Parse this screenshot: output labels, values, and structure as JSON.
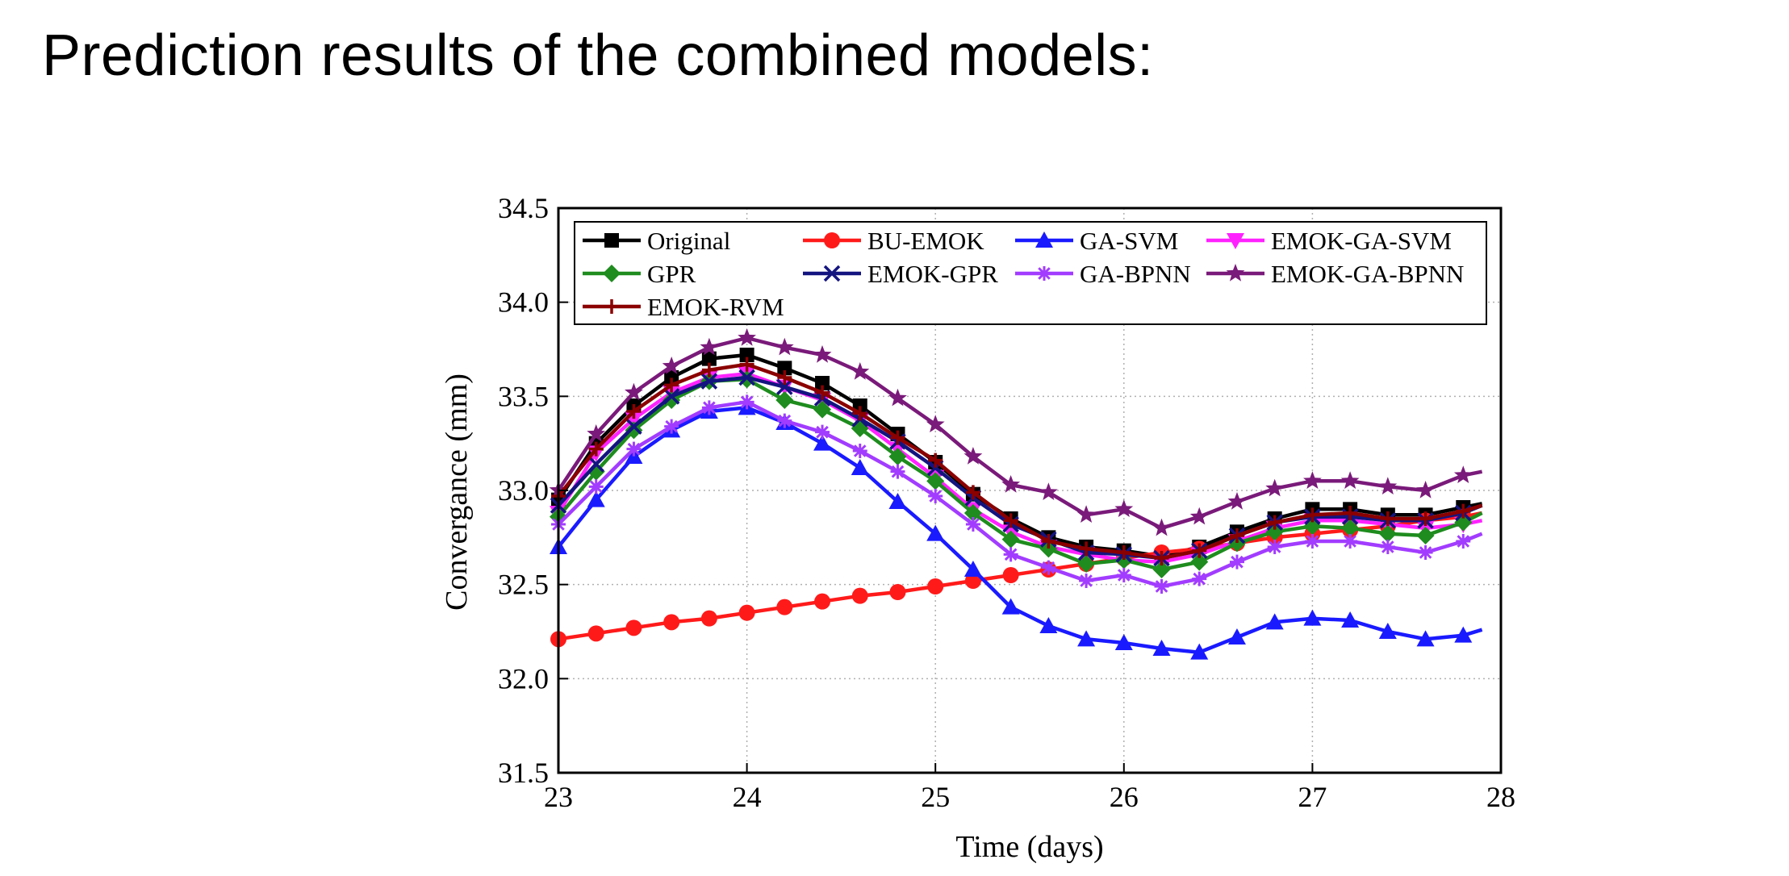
{
  "slide": {
    "title": "Prediction results of the combined models:"
  },
  "chart_data": {
    "type": "line",
    "title": "",
    "xlabel": "Time (days)",
    "ylabel": "Convergance (mm)",
    "xlim": [
      23,
      28
    ],
    "ylim": [
      31.5,
      34.5
    ],
    "xticks": [
      "23",
      "24",
      "25",
      "26",
      "27",
      "28"
    ],
    "yticks": [
      "31.5",
      "32.0",
      "32.5",
      "33.0",
      "33.5",
      "34.0",
      "34.5"
    ],
    "grid": true,
    "legend_position": "top",
    "x": [
      23.0,
      23.2,
      23.4,
      23.6,
      23.8,
      24.0,
      24.2,
      24.4,
      24.6,
      24.8,
      25.0,
      25.2,
      25.4,
      25.6,
      25.8,
      26.0,
      26.2,
      26.4,
      26.6,
      26.8,
      27.0,
      27.2,
      27.4,
      27.6,
      27.8,
      27.9
    ],
    "series": [
      {
        "name": "Original",
        "color": "#000000",
        "marker": "square",
        "values": [
          32.95,
          33.25,
          33.45,
          33.6,
          33.7,
          33.72,
          33.65,
          33.57,
          33.45,
          33.3,
          33.15,
          32.98,
          32.85,
          32.75,
          32.7,
          32.68,
          32.65,
          32.7,
          32.78,
          32.85,
          32.9,
          32.9,
          32.87,
          32.87,
          32.91,
          32.93
        ]
      },
      {
        "name": "BU-EMOK",
        "color": "#ff1a1a",
        "marker": "circle",
        "values": [
          32.21,
          32.24,
          32.27,
          32.3,
          32.32,
          32.35,
          32.38,
          32.41,
          32.44,
          32.46,
          32.49,
          32.52,
          32.55,
          32.58,
          32.61,
          32.64,
          32.67,
          32.69,
          32.72,
          32.75,
          32.77,
          32.79,
          32.81,
          32.84,
          32.86,
          32.88
        ]
      },
      {
        "name": "GA-SVM",
        "color": "#1a1aff",
        "marker": "triangle",
        "values": [
          32.7,
          32.95,
          33.18,
          33.32,
          33.42,
          33.44,
          33.36,
          33.25,
          33.12,
          32.94,
          32.77,
          32.58,
          32.38,
          32.28,
          32.21,
          32.19,
          32.16,
          32.14,
          32.22,
          32.3,
          32.32,
          32.31,
          32.25,
          32.21,
          32.23,
          32.26
        ]
      },
      {
        "name": "EMOK-GA-SVM",
        "color": "#ff22ff",
        "marker": "triangle-down",
        "values": [
          32.88,
          33.2,
          33.38,
          33.52,
          33.6,
          33.62,
          33.55,
          33.48,
          33.37,
          33.22,
          33.07,
          32.9,
          32.78,
          32.7,
          32.66,
          32.63,
          32.62,
          32.66,
          32.73,
          32.8,
          32.84,
          32.84,
          32.82,
          32.8,
          32.82,
          32.84
        ]
      },
      {
        "name": "GPR",
        "color": "#1e8c1e",
        "marker": "diamond",
        "values": [
          32.86,
          33.1,
          33.32,
          33.48,
          33.58,
          33.59,
          33.48,
          33.43,
          33.33,
          33.18,
          33.05,
          32.88,
          32.74,
          32.69,
          32.61,
          32.63,
          32.58,
          32.62,
          32.72,
          32.78,
          32.81,
          32.8,
          32.77,
          32.76,
          32.83,
          32.88
        ]
      },
      {
        "name": "EMOK-GPR",
        "color": "#141480",
        "marker": "x",
        "values": [
          32.92,
          33.14,
          33.34,
          33.5,
          33.58,
          33.6,
          33.55,
          33.49,
          33.38,
          33.26,
          33.12,
          32.96,
          32.82,
          32.74,
          32.67,
          32.66,
          32.64,
          32.68,
          32.76,
          32.83,
          32.86,
          32.86,
          32.84,
          32.84,
          32.88,
          32.92
        ]
      },
      {
        "name": "GA-BPNN",
        "color": "#a23cff",
        "marker": "asterisk",
        "values": [
          32.82,
          33.02,
          33.22,
          33.34,
          33.44,
          33.47,
          33.37,
          33.31,
          33.21,
          33.1,
          32.97,
          32.82,
          32.66,
          32.59,
          32.52,
          32.55,
          32.49,
          32.53,
          32.62,
          32.7,
          32.73,
          32.73,
          32.7,
          32.67,
          32.73,
          32.77
        ]
      },
      {
        "name": "EMOK-GA-BPNN",
        "color": "#7a1a7a",
        "marker": "star",
        "values": [
          33.0,
          33.3,
          33.52,
          33.66,
          33.76,
          33.81,
          33.76,
          33.72,
          33.63,
          33.49,
          33.35,
          33.18,
          33.03,
          32.99,
          32.87,
          32.9,
          32.8,
          32.86,
          32.94,
          33.01,
          33.05,
          33.05,
          33.02,
          33.0,
          33.08,
          33.1
        ]
      },
      {
        "name": "EMOK-RVM",
        "color": "#8b0000",
        "marker": "plus",
        "values": [
          32.97,
          33.22,
          33.42,
          33.56,
          33.64,
          33.67,
          33.6,
          33.52,
          33.41,
          33.28,
          33.16,
          32.99,
          32.84,
          32.73,
          32.69,
          32.67,
          32.64,
          32.68,
          32.76,
          32.83,
          32.87,
          32.88,
          32.85,
          32.85,
          32.89,
          32.92
        ]
      }
    ]
  }
}
